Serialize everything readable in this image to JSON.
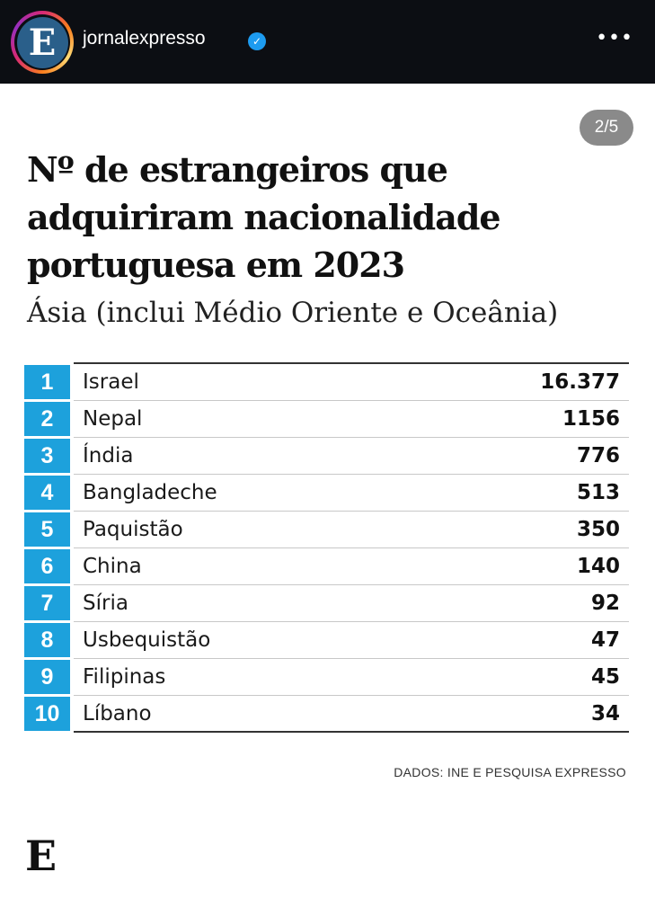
{
  "header": {
    "avatar_letter": "E",
    "username": "jornalexpresso",
    "verified_icon": "verified-badge-icon",
    "more_icon": "more-icon",
    "more": "•••"
  },
  "post": {
    "counter": "2/5",
    "title": "Nº de estrangeiros que adquiriram nacionalidade portuguesa em 2023",
    "subtitle": "Ásia (inclui Médio Oriente e Oceânia)",
    "accent": "#1da1dc",
    "rows": [
      {
        "rank": "1",
        "country": "Israel",
        "value": "16.377"
      },
      {
        "rank": "2",
        "country": "Nepal",
        "value": "1156"
      },
      {
        "rank": "3",
        "country": "Índia",
        "value": "776"
      },
      {
        "rank": "4",
        "country": "Bangladeche",
        "value": "513"
      },
      {
        "rank": "5",
        "country": "Paquistão",
        "value": "350"
      },
      {
        "rank": "6",
        "country": "China",
        "value": "140"
      },
      {
        "rank": "7",
        "country": "Síria",
        "value": "92"
      },
      {
        "rank": "8",
        "country": "Usbequistão",
        "value": "47"
      },
      {
        "rank": "9",
        "country": "Filipinas",
        "value": "45"
      },
      {
        "rank": "10",
        "country": "Líbano",
        "value": "34"
      }
    ],
    "source": "DADOS: INE E PESQUISA EXPRESSO",
    "logo": "E"
  }
}
